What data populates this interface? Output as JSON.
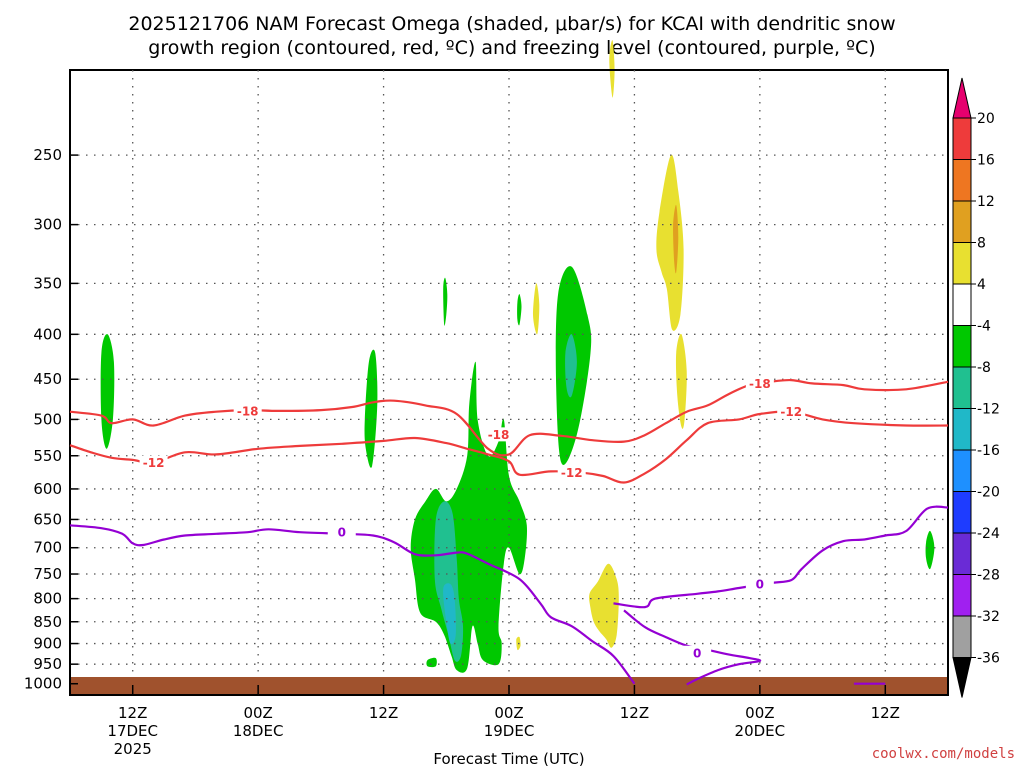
{
  "chart_data": {
    "type": "heatmap",
    "title_line1": "2025121706 NAM Forecast Omega (shaded, μbar/s) for KCAI with dendritic snow",
    "title_line2": "growth region (contoured, red, ºC) and freezing level (contoured, purple, ºC)",
    "xlabel": "Forecast Time (UTC)",
    "credit": "coolwx.com/models",
    "y_ticks": [
      250,
      300,
      350,
      400,
      450,
      500,
      550,
      600,
      650,
      700,
      750,
      800,
      850,
      900,
      950,
      1000
    ],
    "y_tick_labels": [
      "250",
      "300",
      "350",
      "400",
      "450",
      "500",
      "550",
      "600",
      "650",
      "700",
      "750",
      "800",
      "850",
      "900",
      "950",
      "1000"
    ],
    "x_ticks": [
      {
        "hour": 6,
        "line1": "12Z",
        "line2": "17DEC",
        "line3": "2025"
      },
      {
        "hour": 18,
        "line1": "00Z",
        "line2": "18DEC",
        "line3": ""
      },
      {
        "hour": 30,
        "line1": "12Z",
        "line2": "",
        "line3": ""
      },
      {
        "hour": 42,
        "line1": "00Z",
        "line2": "19DEC",
        "line3": ""
      },
      {
        "hour": 54,
        "line1": "12Z",
        "line2": "",
        "line3": ""
      },
      {
        "hour": 66,
        "line1": "00Z",
        "line2": "20DEC",
        "line3": ""
      },
      {
        "hour": 78,
        "line1": "12Z",
        "line2": "",
        "line3": ""
      }
    ],
    "x_range_hours": [
      0,
      84
    ],
    "y_range_hPa": [
      200,
      1030
    ],
    "grid": true,
    "colorbar": {
      "labels": [
        "20",
        "16",
        "12",
        "8",
        "4",
        "-4",
        "-8",
        "-12",
        "-16",
        "-20",
        "-24",
        "-28",
        "-32",
        "-36"
      ],
      "colors": [
        "#e6006e",
        "#ee3b3b",
        "#ee7621",
        "#e0a020",
        "#e8e030",
        "#ffffff",
        "#00c800",
        "#20c090",
        "#20b8c8",
        "#1e90ff",
        "#1e3cff",
        "#6a2bd6",
        "#a020f0",
        "#a0a0a0",
        "#000000"
      ]
    },
    "contours": [
      {
        "name": "-18",
        "color": "#ee3b3b",
        "label": "-18",
        "points": [
          [
            0,
            490
          ],
          [
            3,
            495
          ],
          [
            4,
            505
          ],
          [
            6,
            500
          ],
          [
            8,
            508
          ],
          [
            11,
            495
          ],
          [
            14,
            490
          ],
          [
            17,
            488
          ],
          [
            20,
            489
          ],
          [
            24,
            488
          ],
          [
            27,
            484
          ],
          [
            29,
            478
          ],
          [
            31,
            476
          ],
          [
            34,
            482
          ],
          [
            37,
            493
          ],
          [
            40,
            540
          ],
          [
            42,
            548
          ],
          [
            44,
            521
          ],
          [
            47,
            522
          ],
          [
            50,
            528
          ],
          [
            53,
            530
          ],
          [
            55,
            521
          ],
          [
            57,
            505
          ],
          [
            59,
            490
          ],
          [
            61,
            482
          ],
          [
            63,
            468
          ],
          [
            65,
            457
          ],
          [
            67,
            453
          ],
          [
            69,
            451
          ],
          [
            71,
            455
          ],
          [
            74,
            457
          ],
          [
            76,
            462
          ],
          [
            80,
            462
          ],
          [
            84,
            453
          ]
        ],
        "labels": [
          {
            "x": 17,
            "y": 489
          },
          {
            "x": 41,
            "y": 520
          },
          {
            "x": 66,
            "y": 455
          }
        ]
      },
      {
        "name": "-12",
        "color": "#ee3b3b",
        "label": "-12",
        "points": [
          [
            0,
            535
          ],
          [
            2,
            545
          ],
          [
            4,
            553
          ],
          [
            6,
            556
          ],
          [
            8,
            560
          ],
          [
            11,
            545
          ],
          [
            14,
            548
          ],
          [
            18,
            540
          ],
          [
            22,
            536
          ],
          [
            26,
            533
          ],
          [
            30,
            529
          ],
          [
            33,
            525
          ],
          [
            36,
            532
          ],
          [
            38,
            540
          ],
          [
            40,
            548
          ],
          [
            42,
            558
          ],
          [
            43,
            578
          ],
          [
            46,
            573
          ],
          [
            49,
            575
          ],
          [
            51,
            580
          ],
          [
            53,
            590
          ],
          [
            55,
            576
          ],
          [
            57,
            555
          ],
          [
            59,
            528
          ],
          [
            61,
            505
          ],
          [
            64,
            500
          ],
          [
            66,
            493
          ],
          [
            69,
            490
          ],
          [
            72,
            500
          ],
          [
            75,
            505
          ],
          [
            80,
            508
          ],
          [
            84,
            508
          ]
        ],
        "labels": [
          {
            "x": 8,
            "y": 560
          },
          {
            "x": 48,
            "y": 575
          },
          {
            "x": 69,
            "y": 490
          }
        ]
      },
      {
        "name": "0",
        "color": "#9400d3",
        "label": "0",
        "points": [
          [
            0,
            660
          ],
          [
            3,
            665
          ],
          [
            5,
            675
          ],
          [
            6,
            692
          ],
          [
            7,
            695
          ],
          [
            9,
            685
          ],
          [
            11,
            678
          ],
          [
            14,
            675
          ],
          [
            17,
            672
          ],
          [
            19,
            667
          ],
          [
            22,
            672
          ],
          [
            26,
            675
          ],
          [
            29,
            678
          ],
          [
            31,
            690
          ],
          [
            33,
            712
          ],
          [
            35,
            714
          ],
          [
            37,
            709
          ],
          [
            38,
            711
          ],
          [
            40,
            730
          ],
          [
            43,
            760
          ],
          [
            45,
            810
          ],
          [
            46,
            840
          ],
          [
            48,
            860
          ],
          [
            50,
            895
          ],
          [
            52,
            930
          ],
          [
            54,
            1000
          ]
        ],
        "labels": [
          {
            "x": 26,
            "y": 672
          }
        ]
      },
      {
        "name": "0b",
        "color": "#9400d3",
        "label": "0",
        "points": [
          [
            52,
            810
          ],
          [
            55,
            818
          ],
          [
            56,
            800
          ],
          [
            60,
            790
          ],
          [
            62,
            785
          ],
          [
            64,
            778
          ],
          [
            67,
            768
          ],
          [
            69,
            762
          ],
          [
            70,
            740
          ],
          [
            72,
            705
          ],
          [
            74,
            688
          ],
          [
            76,
            685
          ],
          [
            78,
            678
          ],
          [
            80,
            670
          ],
          [
            82,
            632
          ],
          [
            84,
            630
          ]
        ],
        "labels": [
          {
            "x": 66,
            "y": 770
          }
        ]
      },
      {
        "name": "0c",
        "color": "#9400d3",
        "label": "0",
        "points": [
          [
            53,
            825
          ],
          [
            55,
            862
          ],
          [
            57,
            885
          ],
          [
            59,
            905
          ],
          [
            61,
            915
          ],
          [
            63,
            926
          ],
          [
            65,
            935
          ],
          [
            66,
            942
          ],
          [
            64,
            950
          ],
          [
            62,
            965
          ],
          [
            60,
            988
          ],
          [
            59,
            1002
          ]
        ],
        "labels": [
          {
            "x": 60,
            "y": 922
          }
        ]
      },
      {
        "name": "0d",
        "color": "#9400d3",
        "label": "",
        "points": [
          [
            75,
            1000
          ],
          [
            78,
            1000
          ]
        ],
        "labels": []
      }
    ],
    "shaded": [
      {
        "color": "#00c800",
        "pts": [
          [
            3,
            420
          ],
          [
            3.6,
            400
          ],
          [
            4.2,
            430
          ],
          [
            4.1,
            500
          ],
          [
            3.5,
            540
          ],
          [
            3,
            500
          ]
        ]
      },
      {
        "color": "#00c800",
        "pts": [
          [
            28.2,
            500
          ],
          [
            28.6,
            430
          ],
          [
            29.2,
            420
          ],
          [
            29.4,
            480
          ],
          [
            28.9,
            565
          ],
          [
            28.3,
            540
          ]
        ]
      },
      {
        "color": "#00c800",
        "pts": [
          [
            35.7,
            355
          ],
          [
            35.9,
            345
          ],
          [
            36.1,
            360
          ],
          [
            36,
            380
          ],
          [
            35.8,
            390
          ]
        ]
      },
      {
        "color": "#00c800",
        "pts": [
          [
            42.8,
            368
          ],
          [
            43,
            360
          ],
          [
            43.2,
            372
          ],
          [
            43,
            390
          ],
          [
            42.8,
            385
          ]
        ]
      },
      {
        "color": "#00c800",
        "pts": [
          [
            46.7,
            360
          ],
          [
            48,
            335
          ],
          [
            49.5,
            380
          ],
          [
            49.8,
            420
          ],
          [
            48.5,
            520
          ],
          [
            47,
            560
          ],
          [
            46.5,
            450
          ]
        ]
      },
      {
        "color": "#20c090",
        "pts": [
          [
            47.4,
            420
          ],
          [
            48,
            400
          ],
          [
            48.5,
            430
          ],
          [
            48,
            470
          ],
          [
            47.5,
            460
          ]
        ]
      },
      {
        "color": "#00c800",
        "pts": [
          [
            33,
            650
          ],
          [
            34,
            620
          ],
          [
            35,
            600
          ],
          [
            36,
            620
          ],
          [
            37,
            600
          ],
          [
            38,
            550
          ],
          [
            38.2,
            480
          ],
          [
            38.8,
            430
          ],
          [
            39,
            500
          ],
          [
            40,
            550
          ],
          [
            41,
            530
          ],
          [
            41.5,
            500
          ],
          [
            42,
            580
          ],
          [
            43,
            620
          ],
          [
            43.7,
            660
          ],
          [
            43.5,
            720
          ],
          [
            43,
            750
          ],
          [
            42,
            700
          ],
          [
            41.5,
            730
          ],
          [
            41,
            860
          ],
          [
            41.3,
            900
          ],
          [
            41,
            950
          ],
          [
            39.5,
            940
          ],
          [
            39,
            900
          ],
          [
            38.5,
            860
          ],
          [
            38,
            960
          ],
          [
            37,
            965
          ],
          [
            36.5,
            930
          ],
          [
            35.8,
            880
          ],
          [
            35,
            850
          ],
          [
            33.5,
            830
          ],
          [
            33,
            760
          ],
          [
            32.6,
            700
          ]
        ]
      },
      {
        "color": "#20c090",
        "pts": [
          [
            35,
            650
          ],
          [
            35.8,
            620
          ],
          [
            36.6,
            640
          ],
          [
            37,
            720
          ],
          [
            37.2,
            800
          ],
          [
            37.6,
            860
          ],
          [
            37.4,
            930
          ],
          [
            36.8,
            940
          ],
          [
            36.2,
            880
          ],
          [
            35.5,
            820
          ],
          [
            34.9,
            760
          ]
        ]
      },
      {
        "color": "#20b8c8",
        "pts": [
          [
            35.7,
            780
          ],
          [
            36.4,
            770
          ],
          [
            36.8,
            800
          ],
          [
            36.9,
            880
          ],
          [
            36.4,
            900
          ],
          [
            36,
            850
          ]
        ]
      },
      {
        "color": "#00c800",
        "pts": [
          [
            34.2,
            940
          ],
          [
            35,
            935
          ],
          [
            35,
            955
          ],
          [
            34.2,
            955
          ]
        ]
      },
      {
        "color": "#e8e030",
        "pts": [
          [
            44.3,
            380
          ],
          [
            44.6,
            350
          ],
          [
            44.9,
            370
          ],
          [
            44.7,
            400
          ]
        ]
      },
      {
        "color": "#e8e030",
        "pts": [
          [
            49.7,
            790
          ],
          [
            50.5,
            765
          ],
          [
            51.5,
            730
          ],
          [
            52.3,
            760
          ],
          [
            52.5,
            800
          ],
          [
            52.3,
            880
          ],
          [
            51.8,
            910
          ],
          [
            51.3,
            890
          ],
          [
            50.6,
            870
          ],
          [
            50.1,
            850
          ],
          [
            49.8,
            820
          ]
        ]
      },
      {
        "color": "#e8e030",
        "pts": [
          [
            51.6,
            195
          ],
          [
            51.9,
            185
          ],
          [
            52.1,
            200
          ],
          [
            51.9,
            215
          ]
        ]
      },
      {
        "color": "#e8e030",
        "pts": [
          [
            56.4,
            290
          ],
          [
            57.5,
            250
          ],
          [
            58.2,
            275
          ],
          [
            58.7,
            320
          ],
          [
            58.4,
            380
          ],
          [
            57.6,
            395
          ],
          [
            57.1,
            355
          ],
          [
            56.6,
            340
          ],
          [
            56.1,
            320
          ]
        ]
      },
      {
        "color": "#e0a020",
        "pts": [
          [
            57.7,
            300
          ],
          [
            58,
            285
          ],
          [
            58.2,
            310
          ],
          [
            58,
            340
          ],
          [
            57.8,
            330
          ]
        ]
      },
      {
        "color": "#e8e030",
        "pts": [
          [
            58,
            420
          ],
          [
            58.5,
            400
          ],
          [
            59,
            440
          ],
          [
            58.8,
            500
          ],
          [
            58.5,
            510
          ],
          [
            58.1,
            470
          ]
        ]
      },
      {
        "color": "#e8e030",
        "pts": [
          [
            42.7,
            890
          ],
          [
            43,
            885
          ],
          [
            43.1,
            905
          ],
          [
            42.8,
            915
          ]
        ]
      },
      {
        "color": "#00c800",
        "pts": [
          [
            81.9,
            690
          ],
          [
            82.3,
            670
          ],
          [
            82.7,
            700
          ],
          [
            82.3,
            740
          ],
          [
            81.9,
            720
          ]
        ]
      }
    ]
  }
}
